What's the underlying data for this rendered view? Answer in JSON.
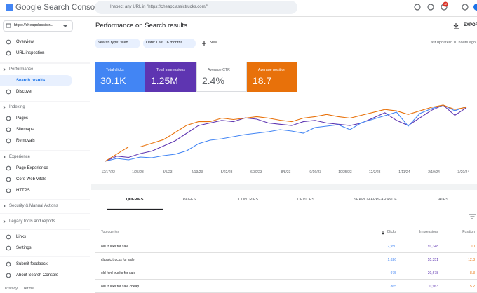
{
  "header": {
    "logo": "Google Search Console",
    "search_placeholder": "Inspect any URL in \"https://cheapclassictrucks.com/\"",
    "notification_count": "42"
  },
  "sidebar": {
    "property": "https://cheapclassictr...",
    "top_items": [
      "Overview",
      "URL inspection"
    ],
    "sections": [
      {
        "title": "Performance",
        "items": [
          "Search results",
          "Discover"
        ]
      },
      {
        "title": "Indexing",
        "items": [
          "Pages",
          "Sitemaps",
          "Removals"
        ]
      },
      {
        "title": "Experience",
        "items": [
          "Page Experience",
          "Core Web Vitals",
          "HTTPS"
        ]
      },
      {
        "title": "Security & Manual Actions",
        "items": []
      },
      {
        "title": "Legacy tools and reports",
        "items": []
      }
    ],
    "bottom_items": [
      "Links",
      "Settings"
    ],
    "footer_items": [
      "Submit feedback",
      "About Search Console"
    ],
    "links": [
      "Privacy",
      "Terms"
    ]
  },
  "main": {
    "title": "Performance on Search results",
    "export": "EXPORT",
    "filters": [
      "Search type: Web",
      "Date: Last 16 months"
    ],
    "new_filter": "New",
    "last_updated": "Last updated: 10 hours ago",
    "metrics": [
      {
        "label": "Total clicks",
        "value": "30.1K",
        "color": "#4285f4",
        "checked": true
      },
      {
        "label": "Total impressions",
        "value": "1.25M",
        "color": "#5e35b1",
        "checked": true
      },
      {
        "label": "Average CTR",
        "value": "2.4%",
        "color": "#ffffff",
        "checked": false
      },
      {
        "label": "Average position",
        "value": "18.7",
        "color": "#e8710a",
        "checked": true
      }
    ],
    "chart": {
      "type": "line",
      "x_ticks": [
        "12/17/22",
        "1/25/23",
        "3/5/23",
        "4/13/23",
        "5/22/23",
        "6/30/23",
        "8/8/23",
        "9/16/23",
        "10/25/23",
        "12/3/23",
        "1/11/24",
        "2/19/24",
        "3/29/24"
      ],
      "series": [
        {
          "color": "#5e35b1",
          "values": [
            1200,
            1400,
            1350,
            1500,
            1600,
            1800,
            2000,
            2300,
            2600,
            2700,
            2800,
            2750,
            2900,
            2850,
            2700,
            2650,
            2600,
            2750,
            2800,
            2700,
            2650,
            2600,
            2700,
            2900,
            3100,
            2800,
            2600,
            2900,
            3200,
            3400,
            3000,
            3300
          ]
        },
        {
          "color": "#4285f4",
          "values": [
            20,
            24,
            22,
            26,
            25,
            28,
            30,
            35,
            45,
            50,
            52,
            55,
            58,
            60,
            62,
            65,
            63,
            60,
            68,
            70,
            72,
            65,
            75,
            80,
            85,
            90,
            70,
            88,
            95,
            100,
            92,
            98
          ]
        },
        {
          "color": "#e8710a",
          "inverted": true,
          "values": [
            24,
            23,
            22,
            22,
            21.5,
            21,
            20,
            19,
            18.5,
            18.5,
            18,
            18.2,
            18,
            17.8,
            18,
            18.3,
            18.5,
            18,
            17.8,
            17.5,
            17.8,
            18,
            17.6,
            17.2,
            16.8,
            17,
            17.5,
            17,
            16.5,
            16.2,
            16.8,
            16.5
          ]
        }
      ]
    },
    "tabs": [
      "QUERIES",
      "PAGES",
      "COUNTRIES",
      "DEVICES",
      "SEARCH APPEARANCE",
      "DATES"
    ],
    "table": {
      "columns": [
        "Top queries",
        "Clicks",
        "Impressions",
        "Position"
      ],
      "rows": [
        [
          "old trucks for sale",
          "2,950",
          "91,348",
          "10"
        ],
        [
          "classic trucks for sale",
          "1,626",
          "55,351",
          "12.8"
        ],
        [
          "old ford trucks for sale",
          "975",
          "20,678",
          "8.3"
        ],
        [
          "old trucks for sale cheap",
          "865",
          "10,963",
          "5.2"
        ]
      ]
    }
  }
}
